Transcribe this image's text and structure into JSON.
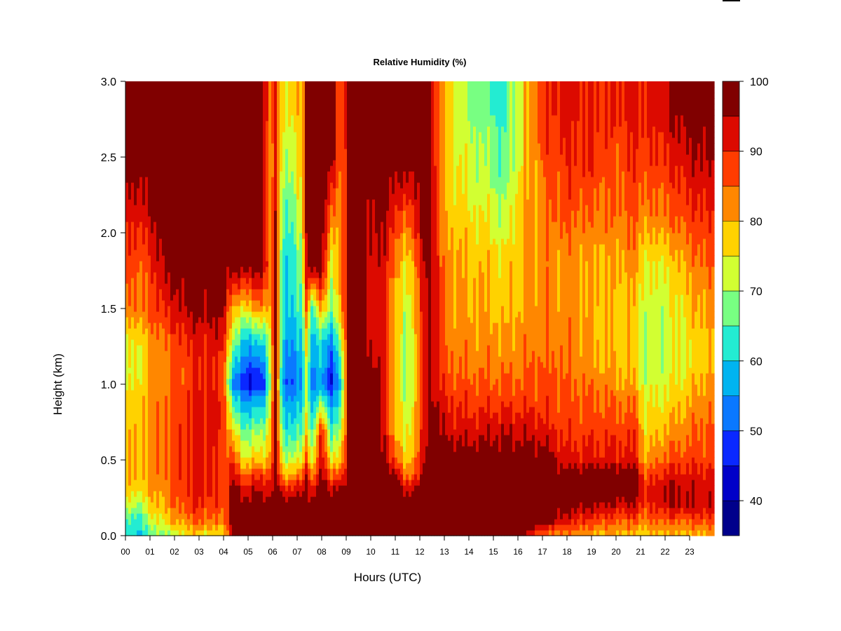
{
  "chart_data": {
    "type": "heatmap",
    "title": "Relative Humidity (%)",
    "xlabel": "Hours (UTC)",
    "ylabel": "Height (km)",
    "x_tick_labels": [
      "00",
      "01",
      "02",
      "03",
      "04",
      "05",
      "06",
      "07",
      "08",
      "09",
      "10",
      "11",
      "12",
      "13",
      "14",
      "15",
      "16",
      "17",
      "18",
      "19",
      "20",
      "21",
      "22",
      "23"
    ],
    "y_tick_labels": [
      "0.0",
      "0.5",
      "1.0",
      "1.5",
      "2.0",
      "2.5",
      "3.0"
    ],
    "xlim": [
      0,
      24
    ],
    "ylim": [
      0,
      3.0
    ],
    "colorbar": {
      "tick_labels": [
        "40",
        "50",
        "60",
        "70",
        "80",
        "90",
        "100"
      ],
      "tick_values": [
        40,
        50,
        60,
        70,
        80,
        90,
        100
      ],
      "range": [
        35,
        100
      ],
      "level_edges": [
        35,
        40,
        45,
        50,
        55,
        60,
        65,
        70,
        75,
        80,
        85,
        90,
        95,
        100
      ],
      "colors": [
        "#00008b",
        "#0000c8",
        "#0a28ff",
        "#0a78ff",
        "#00b4f0",
        "#23ecd2",
        "#78ff82",
        "#d2ff32",
        "#ffd200",
        "#ff8700",
        "#ff3c00",
        "#dc0a00",
        "#800000"
      ]
    },
    "grid": false,
    "profile_heights_km": [
      0.02,
      0.1,
      0.2,
      0.3,
      0.4,
      0.5,
      0.7,
      0.9,
      1.0,
      1.1,
      1.3,
      1.5,
      1.8,
      2.1,
      2.5,
      2.8,
      3.0
    ],
    "profiles": [
      {
        "hour": 0.0,
        "rh": [
          62,
          64,
          72,
          78,
          80,
          78,
          78,
          76,
          74,
          72,
          74,
          82,
          88,
          90,
          99,
          99,
          99
        ]
      },
      {
        "hour": 0.5,
        "rh": [
          60,
          62,
          70,
          76,
          78,
          78,
          78,
          78,
          76,
          74,
          76,
          84,
          86,
          92,
          99,
          99,
          99
        ]
      },
      {
        "hour": 1.0,
        "rh": [
          66,
          72,
          76,
          80,
          82,
          82,
          82,
          82,
          80,
          80,
          82,
          86,
          88,
          94,
          99,
          99,
          99
        ]
      },
      {
        "hour": 1.5,
        "rh": [
          70,
          76,
          80,
          82,
          84,
          84,
          84,
          84,
          82,
          82,
          84,
          90,
          96,
          99,
          99,
          99,
          99
        ]
      },
      {
        "hour": 2.0,
        "rh": [
          72,
          80,
          84,
          86,
          88,
          88,
          88,
          86,
          86,
          86,
          88,
          92,
          99,
          99,
          99,
          99,
          99
        ]
      },
      {
        "hour": 2.5,
        "rh": [
          78,
          84,
          88,
          90,
          90,
          90,
          90,
          90,
          88,
          88,
          90,
          96,
          99,
          99,
          99,
          99,
          99
        ]
      },
      {
        "hour": 3.0,
        "rh": [
          78,
          86,
          90,
          92,
          92,
          92,
          92,
          92,
          90,
          90,
          92,
          97,
          99,
          99,
          99,
          99,
          99
        ]
      },
      {
        "hour": 3.5,
        "rh": [
          76,
          84,
          88,
          90,
          90,
          90,
          92,
          92,
          90,
          90,
          92,
          97,
          99,
          99,
          99,
          99,
          99
        ]
      },
      {
        "hour": 4.0,
        "rh": [
          78,
          84,
          86,
          88,
          88,
          88,
          90,
          90,
          88,
          88,
          92,
          97,
          99,
          99,
          99,
          99,
          99
        ]
      },
      {
        "hour": 4.4,
        "rh": [
          99,
          99,
          99,
          99,
          92,
          88,
          74,
          62,
          50,
          58,
          70,
          78,
          99,
          99,
          99,
          99,
          99
        ]
      },
      {
        "hour": 4.8,
        "rh": [
          99,
          99,
          99,
          92,
          86,
          76,
          66,
          56,
          46,
          52,
          60,
          76,
          99,
          99,
          99,
          99,
          99
        ]
      },
      {
        "hour": 5.2,
        "rh": [
          99,
          99,
          99,
          94,
          88,
          78,
          68,
          56,
          44,
          48,
          60,
          80,
          99,
          99,
          99,
          99,
          99
        ]
      },
      {
        "hour": 5.6,
        "rh": [
          99,
          99,
          99,
          94,
          88,
          78,
          68,
          56,
          46,
          50,
          62,
          82,
          99,
          99,
          99,
          99,
          99
        ]
      },
      {
        "hour": 5.9,
        "rh": [
          99,
          99,
          99,
          94,
          90,
          82,
          78,
          74,
          70,
          72,
          74,
          80,
          84,
          80,
          82,
          84,
          84
        ]
      },
      {
        "hour": 6.1,
        "rh": [
          99,
          99,
          99,
          99,
          99,
          99,
          99,
          99,
          99,
          99,
          99,
          99,
          96,
          94,
          90,
          90,
          90
        ]
      },
      {
        "hour": 6.4,
        "rh": [
          99,
          99,
          99,
          92,
          80,
          72,
          64,
          58,
          54,
          56,
          60,
          62,
          62,
          66,
          72,
          76,
          76
        ]
      },
      {
        "hour": 6.8,
        "rh": [
          99,
          99,
          99,
          92,
          82,
          72,
          62,
          56,
          50,
          52,
          56,
          60,
          62,
          66,
          72,
          76,
          76
        ]
      },
      {
        "hour": 7.2,
        "rh": [
          99,
          99,
          99,
          92,
          84,
          74,
          64,
          58,
          54,
          56,
          60,
          64,
          68,
          74,
          78,
          78,
          78
        ]
      },
      {
        "hour": 7.4,
        "rh": [
          99,
          99,
          99,
          99,
          99,
          90,
          80,
          76,
          74,
          76,
          80,
          90,
          99,
          99,
          99,
          99,
          99
        ]
      },
      {
        "hour": 7.6,
        "rh": [
          99,
          99,
          99,
          92,
          82,
          72,
          64,
          56,
          52,
          54,
          58,
          64,
          99,
          99,
          99,
          99,
          99
        ]
      },
      {
        "hour": 8.0,
        "rh": [
          99,
          99,
          99,
          99,
          96,
          94,
          90,
          66,
          56,
          58,
          62,
          80,
          99,
          99,
          99,
          99,
          99
        ]
      },
      {
        "hour": 8.4,
        "rh": [
          99,
          99,
          99,
          96,
          86,
          76,
          64,
          54,
          46,
          48,
          56,
          68,
          74,
          84,
          99,
          99,
          99
        ]
      },
      {
        "hour": 8.8,
        "rh": [
          99,
          99,
          99,
          96,
          86,
          78,
          70,
          62,
          60,
          62,
          70,
          80,
          80,
          80,
          82,
          84,
          84
        ]
      },
      {
        "hour": 9.1,
        "rh": [
          99,
          99,
          99,
          99,
          99,
          99,
          99,
          99,
          99,
          99,
          99,
          99,
          99,
          99,
          99,
          99,
          99
        ]
      },
      {
        "hour": 10.0,
        "rh": [
          99,
          99,
          99,
          99,
          99,
          99,
          99,
          99,
          99,
          99,
          94,
          94,
          94,
          96,
          99,
          99,
          99
        ]
      },
      {
        "hour": 10.6,
        "rh": [
          99,
          99,
          99,
          99,
          99,
          96,
          92,
          90,
          90,
          90,
          90,
          90,
          92,
          96,
          99,
          99,
          99
        ]
      },
      {
        "hour": 11.0,
        "rh": [
          99,
          99,
          99,
          99,
          99,
          88,
          80,
          78,
          78,
          78,
          78,
          80,
          84,
          90,
          99,
          99,
          99
        ]
      },
      {
        "hour": 11.4,
        "rh": [
          99,
          99,
          99,
          92,
          82,
          76,
          72,
          70,
          70,
          70,
          70,
          70,
          74,
          84,
          99,
          99,
          99
        ]
      },
      {
        "hour": 11.8,
        "rh": [
          99,
          99,
          99,
          99,
          88,
          84,
          80,
          78,
          78,
          78,
          78,
          80,
          84,
          92,
          99,
          99,
          99
        ]
      },
      {
        "hour": 12.4,
        "rh": [
          99,
          99,
          99,
          99,
          99,
          99,
          99,
          99,
          99,
          99,
          99,
          99,
          99,
          99,
          99,
          99,
          99
        ]
      },
      {
        "hour": 13.0,
        "rh": [
          99,
          99,
          99,
          99,
          99,
          99,
          94,
          90,
          88,
          86,
          84,
          84,
          82,
          80,
          78,
          78,
          78
        ]
      },
      {
        "hour": 14.0,
        "rh": [
          99,
          99,
          99,
          99,
          99,
          99,
          92,
          88,
          86,
          84,
          82,
          80,
          80,
          76,
          72,
          70,
          70
        ]
      },
      {
        "hour": 15.0,
        "rh": [
          99,
          99,
          99,
          99,
          99,
          99,
          94,
          88,
          86,
          84,
          82,
          80,
          78,
          74,
          68,
          66,
          66
        ]
      },
      {
        "hour": 15.4,
        "rh": [
          99,
          99,
          99,
          99,
          99,
          99,
          94,
          88,
          86,
          84,
          80,
          78,
          76,
          70,
          64,
          62,
          62
        ]
      },
      {
        "hour": 16.0,
        "rh": [
          99,
          99,
          99,
          99,
          99,
          99,
          94,
          88,
          86,
          84,
          82,
          80,
          80,
          78,
          74,
          74,
          74
        ]
      },
      {
        "hour": 17.0,
        "rh": [
          86,
          99,
          99,
          99,
          99,
          99,
          92,
          88,
          86,
          86,
          84,
          84,
          82,
          84,
          86,
          88,
          88
        ]
      },
      {
        "hour": 18.0,
        "rh": [
          84,
          92,
          99,
          99,
          99,
          92,
          88,
          86,
          86,
          84,
          84,
          82,
          82,
          86,
          90,
          92,
          92
        ]
      },
      {
        "hour": 19.0,
        "rh": [
          82,
          88,
          96,
          99,
          99,
          92,
          88,
          86,
          84,
          82,
          80,
          80,
          80,
          84,
          90,
          90,
          90
        ]
      },
      {
        "hour": 20.0,
        "rh": [
          80,
          86,
          94,
          99,
          99,
          92,
          88,
          84,
          82,
          80,
          78,
          78,
          80,
          84,
          86,
          90,
          90
        ]
      },
      {
        "hour": 20.8,
        "rh": [
          80,
          86,
          94,
          99,
          99,
          92,
          88,
          84,
          80,
          78,
          78,
          78,
          82,
          86,
          90,
          92,
          92
        ]
      },
      {
        "hour": 21.2,
        "rh": [
          78,
          84,
          88,
          90,
          86,
          80,
          76,
          74,
          72,
          70,
          70,
          72,
          74,
          82,
          88,
          90,
          90
        ]
      },
      {
        "hour": 22.0,
        "rh": [
          80,
          86,
          94,
          96,
          92,
          86,
          80,
          76,
          74,
          72,
          72,
          72,
          76,
          84,
          90,
          94,
          94
        ]
      },
      {
        "hour": 23.0,
        "rh": [
          80,
          86,
          94,
          94,
          92,
          88,
          84,
          80,
          78,
          76,
          76,
          78,
          82,
          88,
          94,
          99,
          99
        ]
      },
      {
        "hour": 23.8,
        "rh": [
          82,
          88,
          94,
          94,
          92,
          88,
          86,
          84,
          82,
          80,
          80,
          82,
          86,
          90,
          96,
          99,
          99
        ]
      }
    ]
  }
}
